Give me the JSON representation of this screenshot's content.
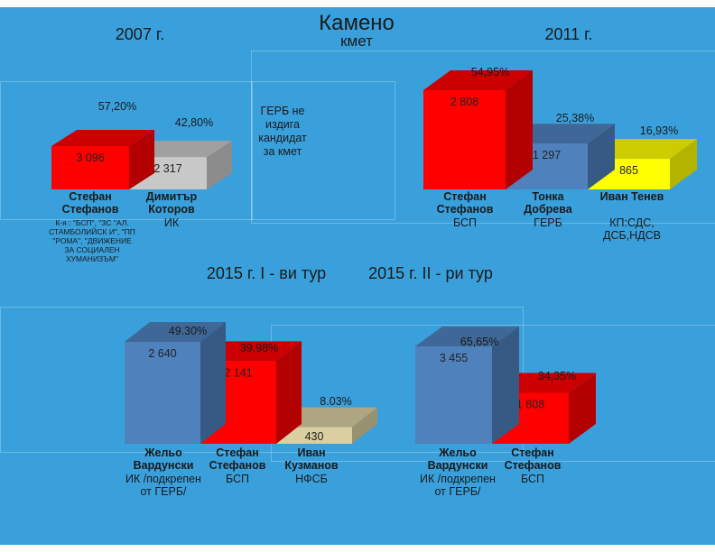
{
  "title": "Камено",
  "subtitle": "кмет",
  "colors": {
    "background": "#3aa0dc",
    "red": "#ff0000",
    "gray": "#c8c8c8",
    "blue": "#4f81bd",
    "yellow": "#ffff00",
    "tan": "#d9cfa0"
  },
  "chart_data": [
    {
      "type": "bar",
      "title": "2007 г.",
      "categories": [
        "Стефан Стефанов",
        "Димитър Которов"
      ],
      "values": [
        3096,
        2317
      ],
      "value_labels": [
        "3 096",
        "2 317"
      ],
      "percent_labels": [
        "57,20%",
        "42,80%"
      ],
      "parties": [
        "К-я : \"БСП\", \"ЗС \"АЛ. СТАМБОЛИЙСК И\", \"ПП \"РОМА\", \"ДВИЖЕНИЕ ЗА СОЦИАЛЕН ХУМАНИЗЪМ\"",
        "ИК"
      ],
      "colors": [
        "#ff0000",
        "#c8c8c8"
      ],
      "note": "ГЕРБ не издига кандидат за кмет"
    },
    {
      "type": "bar",
      "title": "2011 г.",
      "categories": [
        "Стефан Стефанов",
        "Тонка Добрева",
        "Иван Тенев"
      ],
      "values": [
        2808,
        1297,
        865
      ],
      "value_labels": [
        "2 808",
        "1 297",
        "865"
      ],
      "percent_labels": [
        "54,95%",
        "25,38%",
        "16,93%"
      ],
      "parties": [
        "БСП",
        "ГЕРБ",
        "КП:СДС, ДСБ,НДСВ"
      ],
      "colors": [
        "#ff0000",
        "#4f81bd",
        "#ffff00"
      ]
    },
    {
      "type": "bar",
      "title": "2015 г. I - ви тур",
      "categories": [
        "Жельо Вардунски",
        "Стефан Стефанов",
        "Иван Кузманов"
      ],
      "values": [
        2640,
        2141,
        430
      ],
      "value_labels": [
        "2 640",
        "2 141",
        "430"
      ],
      "percent_labels": [
        "49.30%",
        "39.98%",
        "8.03%"
      ],
      "parties": [
        "ИК /подкрепен от ГЕРБ/",
        "БСП",
        "НФСБ"
      ],
      "colors": [
        "#4f81bd",
        "#ff0000",
        "#d9cfa0"
      ]
    },
    {
      "type": "bar",
      "title": "2015 г. II - ри тур",
      "categories": [
        "Жельо Вардунски",
        "Стефан Стефанов"
      ],
      "values": [
        3455,
        1808
      ],
      "value_labels": [
        "3 455",
        "1 808"
      ],
      "percent_labels": [
        "65,65%",
        "34,35%"
      ],
      "parties": [
        "ИК /подкрепен от ГЕРБ/",
        "БСП"
      ],
      "colors": [
        "#4f81bd",
        "#ff0000"
      ]
    }
  ]
}
